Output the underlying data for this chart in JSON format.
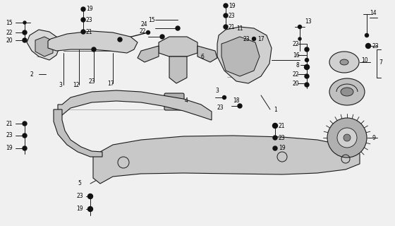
{
  "bg_color": "#f0f0f0",
  "line_color": "#1a1a1a",
  "text_color": "#000000",
  "fig_width": 5.6,
  "fig_height": 3.2,
  "dpi": 100
}
